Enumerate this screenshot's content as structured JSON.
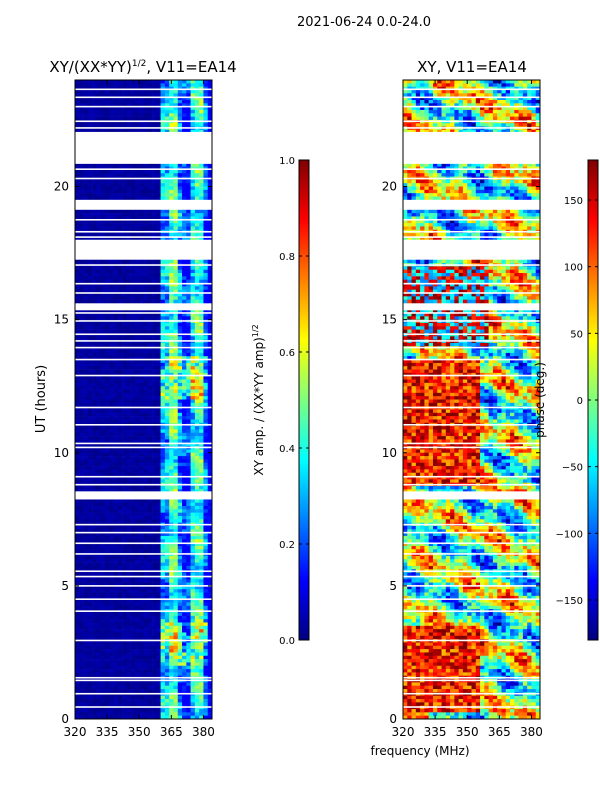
{
  "figure": {
    "suptitle": "2021-06-24 0.0-24.0",
    "xlabel": "frequency (MHz)"
  },
  "colors": {
    "background": "#ffffff",
    "jet": [
      "#00007f",
      "#0000ff",
      "#007fff",
      "#00ffff",
      "#7fff7f",
      "#ffff00",
      "#ff7f00",
      "#ff0000",
      "#7f0000"
    ]
  },
  "chart_data": [
    {
      "type": "heatmap",
      "title_main": "XY/(XX*YY)",
      "title_sup": "1/2",
      "title_rest": ", V11=EA14",
      "ylabel": "UT (hours)",
      "x_ticks": [
        "320",
        "335",
        "350",
        "365",
        "380"
      ],
      "x_tick_values": [
        320,
        335,
        350,
        365,
        380
      ],
      "y_ticks": [
        "0",
        "5",
        "10",
        "15",
        "20"
      ],
      "y_tick_values": [
        0,
        5,
        10,
        15,
        20
      ],
      "xlim": [
        320,
        384
      ],
      "ylim": [
        0,
        24
      ],
      "description_of_values": "low amplitude (~0.0-0.1) across 320-360 MHz; patchy 0.2-0.8 in 362-380 MHz, peaks ~0.75 near 365-380 MHz at 12-13.5 h and 2-3.5 h",
      "colorbar": {
        "label_main": "XY amp. / (XX*YY amp)",
        "label_sup": "1/2",
        "range": [
          0.0,
          1.0
        ],
        "ticks": [
          "0.0",
          "0.2",
          "0.4",
          "0.6",
          "0.8",
          "1.0"
        ],
        "tick_values": [
          0.0,
          0.2,
          0.4,
          0.6,
          0.8,
          1.0
        ]
      },
      "gaps_hours": [
        [
          8.25,
          8.55
        ],
        [
          17.3,
          18.0
        ],
        [
          19.15,
          19.5
        ],
        [
          20.85,
          22.05
        ],
        [
          15.35,
          15.6
        ]
      ]
    },
    {
      "type": "heatmap",
      "title": "XY, V11=EA14",
      "x_ticks": [
        "320",
        "335",
        "350",
        "365",
        "380"
      ],
      "x_tick_values": [
        320,
        335,
        350,
        365,
        380
      ],
      "y_ticks": [
        "0",
        "5",
        "10",
        "15",
        "20"
      ],
      "y_tick_values": [
        0,
        5,
        10,
        15,
        20
      ],
      "xlim": [
        320,
        384
      ],
      "ylim": [
        0,
        24
      ],
      "description_of_values": "phase spanning -180 to 180 deg, banded noisy structure; mostly red/positive 320-355 MHz at 9-13 h and 0-3 h; mixed green/yellow elsewhere",
      "colorbar": {
        "label": "phase (deg.)",
        "range": [
          -180,
          180
        ],
        "ticks": [
          "-150",
          "-100",
          "-50",
          "0",
          "50",
          "100",
          "150"
        ],
        "tick_values": [
          -150,
          -100,
          -50,
          0,
          50,
          100,
          150
        ]
      },
      "gaps_hours": [
        [
          8.25,
          8.55
        ],
        [
          17.3,
          18.0
        ],
        [
          19.15,
          19.5
        ],
        [
          20.85,
          22.05
        ],
        [
          15.35,
          15.6
        ]
      ]
    }
  ]
}
